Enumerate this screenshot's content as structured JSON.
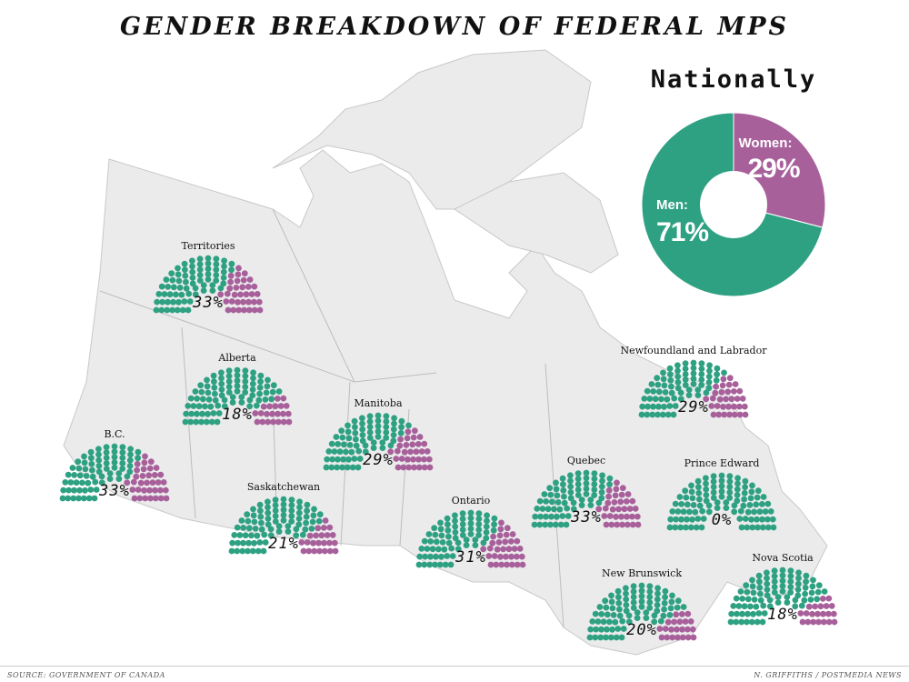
{
  "title": "GENDER BREAKDOWN OF FEDERAL MPS",
  "source": "SOURCE: GOVERNMENT OF CANADA",
  "credit": "N. GRIFFITHS / POSTMEDIA NEWS",
  "colors": {
    "men": "#2fa183",
    "women": "#a8609b",
    "map": "#ebebec",
    "border": "#b8b8b8"
  },
  "chart_data": [
    {
      "type": "pie",
      "title": "Nationally",
      "donut": true,
      "slices": [
        {
          "name": "Women:",
          "label": "29%",
          "value": 29
        },
        {
          "name": "Men:",
          "label": "71%",
          "value": 71
        }
      ]
    },
    {
      "type": "parliament",
      "regions": [
        {
          "name": "Territories",
          "women_pct": 33,
          "label": "33%"
        },
        {
          "name": "Alberta",
          "women_pct": 18,
          "label": "18%"
        },
        {
          "name": "B.C.",
          "women_pct": 33,
          "label": "33%"
        },
        {
          "name": "Manitoba",
          "women_pct": 29,
          "label": "29%"
        },
        {
          "name": "Saskatchewan",
          "women_pct": 21,
          "label": "21%"
        },
        {
          "name": "Ontario",
          "women_pct": 31,
          "label": "31%"
        },
        {
          "name": "Quebec",
          "women_pct": 33,
          "label": "33%"
        },
        {
          "name": "Newfoundland and Labrador",
          "women_pct": 29,
          "label": "29%"
        },
        {
          "name": "Prince Edward",
          "women_pct": 0,
          "label": "0%"
        },
        {
          "name": "New Brunswick",
          "women_pct": 20,
          "label": "20%"
        },
        {
          "name": "Nova Scotia",
          "women_pct": 18,
          "label": "18%"
        }
      ]
    }
  ]
}
